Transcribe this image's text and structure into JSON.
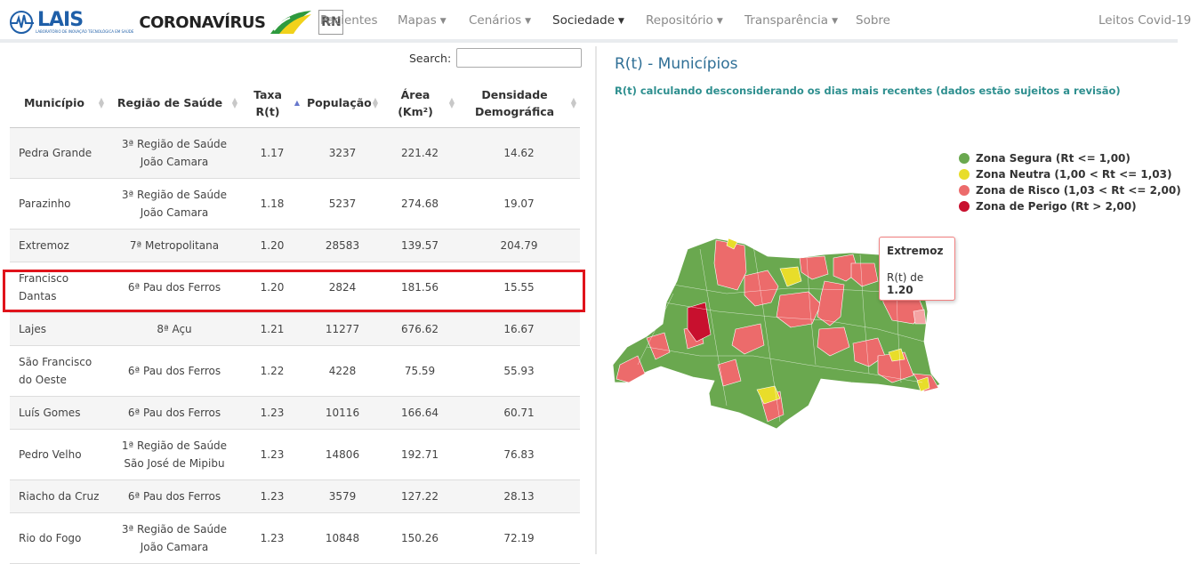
{
  "navbar": {
    "logo_text": "LAIS",
    "logo_subtext": "LABORATÓRIO DE INOVAÇÃO TECNOLÓGICA EM SAÚDE",
    "brand_title": "CORONAVÍRUS",
    "rn_badge": "RN",
    "items": [
      {
        "label": "Pacientes"
      },
      {
        "label": "Mapas"
      },
      {
        "label": "Cenários"
      },
      {
        "label": "Sociedade"
      },
      {
        "label": "Repositório"
      },
      {
        "label": "Transparência"
      },
      {
        "label": "Sobre"
      },
      {
        "label": "Leitos Covid-19"
      }
    ]
  },
  "table": {
    "search_label": "Search:",
    "search_value": "",
    "headers": {
      "municipio": "Município",
      "regiao": "Região de Saúde",
      "taxa_1": "Taxa",
      "taxa_2": "R(t)",
      "populacao": "População",
      "area_1": "Área",
      "area_2": "(Km²)",
      "densidade_1": "Densidade",
      "densidade_2": "Demográfica"
    },
    "rows": [
      {
        "municipio": "Pedra Grande",
        "regiao_1": "3ª Região de Saúde",
        "regiao_2": "João Camara",
        "rt": "1.17",
        "pop": "3237",
        "area": "221.42",
        "dens": "14.62"
      },
      {
        "municipio": "Parazinho",
        "regiao_1": "3ª Região de Saúde",
        "regiao_2": "João Camara",
        "rt": "1.18",
        "pop": "5237",
        "area": "274.68",
        "dens": "19.07"
      },
      {
        "municipio": "Extremoz",
        "regiao_1": "7ª Metropolitana",
        "regiao_2": "",
        "rt": "1.20",
        "pop": "28583",
        "area": "139.57",
        "dens": "204.79"
      },
      {
        "municipio": "Francisco",
        "municipio_2": "Dantas",
        "regiao_1": "6ª Pau dos Ferros",
        "regiao_2": "",
        "rt": "1.20",
        "pop": "2824",
        "area": "181.56",
        "dens": "15.55"
      },
      {
        "municipio": "Lajes",
        "regiao_1": "8ª Açu",
        "regiao_2": "",
        "rt": "1.21",
        "pop": "11277",
        "area": "676.62",
        "dens": "16.67"
      },
      {
        "municipio": "São Francisco",
        "municipio_2": "do Oeste",
        "regiao_1": "6ª Pau dos Ferros",
        "regiao_2": "",
        "rt": "1.22",
        "pop": "4228",
        "area": "75.59",
        "dens": "55.93"
      },
      {
        "municipio": "Luís Gomes",
        "regiao_1": "6ª Pau dos Ferros",
        "regiao_2": "",
        "rt": "1.23",
        "pop": "10116",
        "area": "166.64",
        "dens": "60.71"
      },
      {
        "municipio": "Pedro Velho",
        "regiao_1": "1ª Região de Saúde",
        "regiao_2": "São José de Mipibu",
        "rt": "1.23",
        "pop": "14806",
        "area": "192.71",
        "dens": "76.83"
      },
      {
        "municipio": "Riacho da Cruz",
        "regiao_1": "6ª Pau dos Ferros",
        "regiao_2": "",
        "rt": "1.23",
        "pop": "3579",
        "area": "127.22",
        "dens": "28.13"
      },
      {
        "municipio": "Rio do Fogo",
        "regiao_1": "3ª Região de Saúde",
        "regiao_2": "João Camara",
        "rt": "1.23",
        "pop": "10848",
        "area": "150.26",
        "dens": "72.19"
      }
    ]
  },
  "map_panel": {
    "title": "R(t) - Municípios",
    "subtitle": "R(t) calculando desconsiderando os dias mais recentes (dados estão sujeitos a revisão)",
    "legend": [
      {
        "label": "Zona Segura (Rt <= 1,00)",
        "color": "#6aa84f"
      },
      {
        "label": "Zona Neutra (1,00 < Rt <= 1,03)",
        "color": "#e8dd2a"
      },
      {
        "label": "Zona de Risco (1,03 < Rt <= 2,00)",
        "color": "#ec6b6b"
      },
      {
        "label": "Zona de Perigo (Rt > 2,00)",
        "color": "#c8102e"
      }
    ],
    "tooltip": {
      "title": "Extremoz",
      "prefix": "R(t) de",
      "value": "1.20"
    }
  }
}
